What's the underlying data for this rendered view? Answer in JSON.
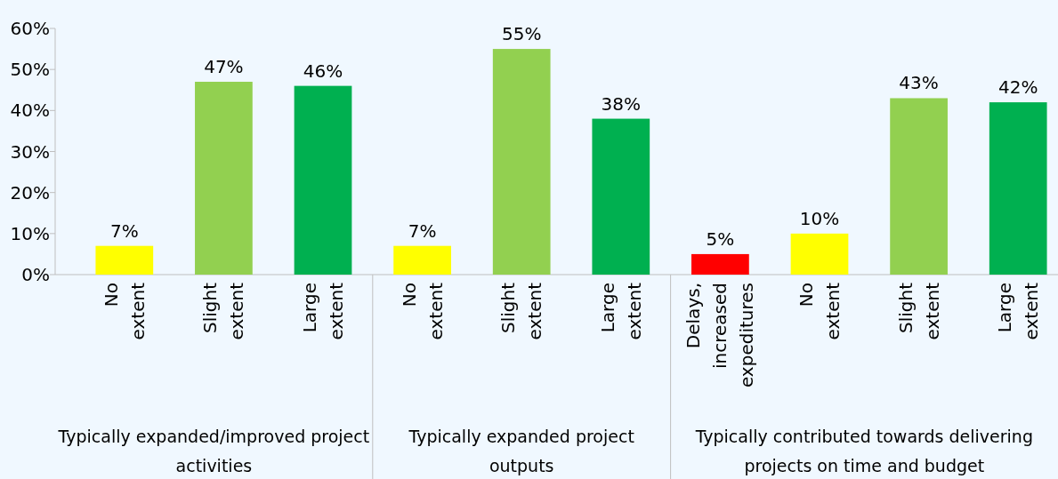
{
  "chart_data": {
    "type": "bar",
    "categories": [
      "No extent",
      "Slight extent",
      "Large extent",
      "No extent",
      "Slight extent",
      "Large extent",
      "Delays, increased expeditures",
      "No extent",
      "Slight extent",
      "Large extent"
    ],
    "values": [
      7,
      47,
      46,
      7,
      55,
      38,
      5,
      10,
      43,
      42
    ],
    "colors": [
      "#ffff00",
      "#92d050",
      "#00b050",
      "#ffff00",
      "#92d050",
      "#00b050",
      "#ff0000",
      "#ffff00",
      "#92d050",
      "#00b050"
    ],
    "value_labels": [
      "7%",
      "47%",
      "46%",
      "7%",
      "55%",
      "38%",
      "5%",
      "10%",
      "43%",
      "42%"
    ],
    "ylim": [
      0,
      60
    ],
    "yticks": [
      {
        "value": 0,
        "label": "0%"
      },
      {
        "value": 10,
        "label": "10%"
      },
      {
        "value": 20,
        "label": "20%"
      },
      {
        "value": 30,
        "label": "30%"
      },
      {
        "value": 40,
        "label": "40%"
      },
      {
        "value": 50,
        "label": "50%"
      },
      {
        "value": 60,
        "label": "60%"
      }
    ],
    "annotations": [
      "Typically expanded/improved project activities",
      "Typically expanded project outputs",
      "Typically contributed towards delivering projects on time and budget"
    ],
    "grid": false
  }
}
